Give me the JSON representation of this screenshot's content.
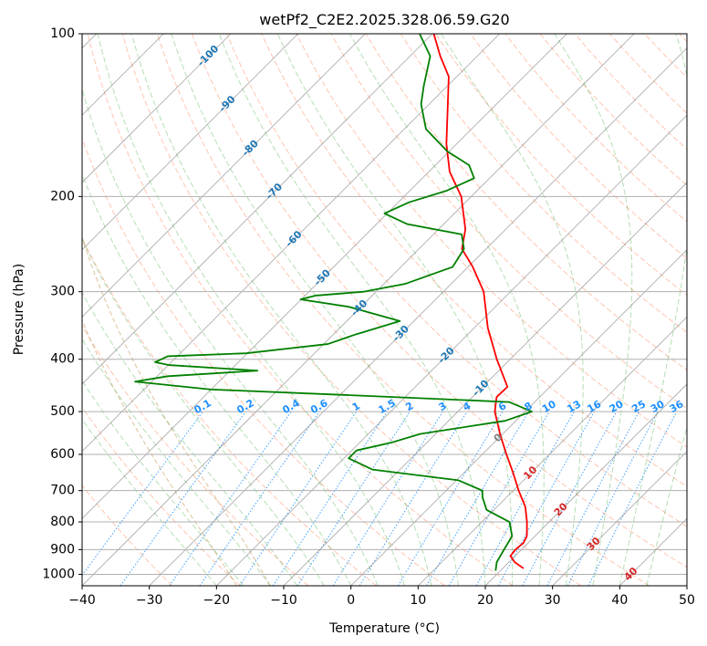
{
  "chart_data": {
    "type": "line",
    "title": "wetPf2_C2E2.2025.328.06.59.G20",
    "xlabel": "Temperature (°C)",
    "ylabel": "Pressure (hPa)",
    "xlim": [
      -40,
      50
    ],
    "ylim": [
      1050,
      100
    ],
    "y_scale": "log",
    "skew_degrees": 45,
    "grid": true,
    "x_ticks": [
      -40,
      -30,
      -20,
      -10,
      0,
      10,
      20,
      30,
      40,
      50
    ],
    "x_tick_labels": [
      "−40",
      "−30",
      "−20",
      "−10",
      "0",
      "10",
      "20",
      "30",
      "40",
      "50"
    ],
    "y_ticks": [
      1000,
      900,
      800,
      700,
      600,
      500,
      400,
      300,
      200,
      100
    ],
    "y_tick_labels": [
      "1000",
      "900",
      "800",
      "700",
      "600",
      "500",
      "400",
      "300",
      "200",
      "100"
    ],
    "series": [
      {
        "kind": "temperature",
        "color": "#ff0000",
        "points": [
          {
            "p": 975,
            "t": 23.1
          },
          {
            "p": 950,
            "t": 20.9
          },
          {
            "p": 925,
            "t": 19.3
          },
          {
            "p": 900,
            "t": 19.1
          },
          {
            "p": 875,
            "t": 19.3
          },
          {
            "p": 850,
            "t": 18.8
          },
          {
            "p": 800,
            "t": 16.7
          },
          {
            "p": 750,
            "t": 14.2
          },
          {
            "p": 700,
            "t": 10.8
          },
          {
            "p": 650,
            "t": 7.4
          },
          {
            "p": 600,
            "t": 3.6
          },
          {
            "p": 550,
            "t": -0.4
          },
          {
            "p": 500,
            "t": -4.5
          },
          {
            "p": 470,
            "t": -6.4
          },
          {
            "p": 450,
            "t": -6.3
          },
          {
            "p": 430,
            "t": -8.5
          },
          {
            "p": 400,
            "t": -12.0
          },
          {
            "p": 350,
            "t": -18.0
          },
          {
            "p": 300,
            "t": -24.0
          },
          {
            "p": 270,
            "t": -29.3
          },
          {
            "p": 250,
            "t": -33.6
          },
          {
            "p": 230,
            "t": -36.0
          },
          {
            "p": 200,
            "t": -41.5
          },
          {
            "p": 180,
            "t": -46.9
          },
          {
            "p": 160,
            "t": -51.5
          },
          {
            "p": 140,
            "t": -56.0
          },
          {
            "p": 120,
            "t": -61.2
          },
          {
            "p": 110,
            "t": -65.5
          },
          {
            "p": 100,
            "t": -69.8
          }
        ]
      },
      {
        "kind": "dewpoint",
        "color": "#008000",
        "points": [
          {
            "p": 985,
            "t": 19.3
          },
          {
            "p": 950,
            "t": 18.2
          },
          {
            "p": 900,
            "t": 17.4
          },
          {
            "p": 850,
            "t": 16.6
          },
          {
            "p": 800,
            "t": 14.1
          },
          {
            "p": 760,
            "t": 8.9
          },
          {
            "p": 720,
            "t": 6.4
          },
          {
            "p": 700,
            "t": 5.4
          },
          {
            "p": 670,
            "t": 0.3
          },
          {
            "p": 640,
            "t": -14.1
          },
          {
            "p": 610,
            "t": -19.3
          },
          {
            "p": 590,
            "t": -19.3
          },
          {
            "p": 570,
            "t": -15.2
          },
          {
            "p": 550,
            "t": -12.3
          },
          {
            "p": 520,
            "t": -1.6
          },
          {
            "p": 500,
            "t": 1.0
          },
          {
            "p": 480,
            "t": -3.8
          },
          {
            "p": 465,
            "t": -30.8
          },
          {
            "p": 455,
            "t": -50.0
          },
          {
            "p": 440,
            "t": -62.5
          },
          {
            "p": 430,
            "t": -58.4
          },
          {
            "p": 420,
            "t": -45.9
          },
          {
            "p": 410,
            "t": -60.0
          },
          {
            "p": 405,
            "t": -62.4
          },
          {
            "p": 395,
            "t": -61.4
          },
          {
            "p": 390,
            "t": -50.2
          },
          {
            "p": 375,
            "t": -39.4
          },
          {
            "p": 360,
            "t": -36.7
          },
          {
            "p": 340,
            "t": -32.1
          },
          {
            "p": 320,
            "t": -41.8
          },
          {
            "p": 310,
            "t": -50.1
          },
          {
            "p": 305,
            "t": -48.4
          },
          {
            "p": 300,
            "t": -41.8
          },
          {
            "p": 290,
            "t": -36.8
          },
          {
            "p": 270,
            "t": -32.3
          },
          {
            "p": 250,
            "t": -33.3
          },
          {
            "p": 235,
            "t": -35.8
          },
          {
            "p": 225,
            "t": -45.4
          },
          {
            "p": 215,
            "t": -50.4
          },
          {
            "p": 205,
            "t": -48.4
          },
          {
            "p": 195,
            "t": -44.5
          },
          {
            "p": 185,
            "t": -42.3
          },
          {
            "p": 175,
            "t": -45.0
          },
          {
            "p": 165,
            "t": -50.3
          },
          {
            "p": 150,
            "t": -56.8
          },
          {
            "p": 135,
            "t": -61.2
          },
          {
            "p": 125,
            "t": -63.5
          },
          {
            "p": 110,
            "t": -67.0
          },
          {
            "p": 100,
            "t": -71.9
          }
        ]
      }
    ],
    "isotherm_labels": {
      "color": "#1f77b4",
      "items": [
        {
          "value": -100,
          "text": "-100"
        },
        {
          "value": -90,
          "text": "-90"
        },
        {
          "value": -80,
          "text": "-80"
        },
        {
          "value": -70,
          "text": "-70"
        },
        {
          "value": -60,
          "text": "-60"
        },
        {
          "value": -50,
          "text": "-50"
        },
        {
          "value": -40,
          "text": "-40"
        },
        {
          "value": -30,
          "text": "-30"
        },
        {
          "value": -20,
          "text": "-20"
        },
        {
          "value": -10,
          "text": "-10"
        }
      ]
    },
    "isotherm_labels_warm": {
      "items": [
        {
          "value": 0,
          "text": "0",
          "color": "#7f7f7f"
        },
        {
          "value": 10,
          "text": "10",
          "color": "#d62728"
        },
        {
          "value": 20,
          "text": "20",
          "color": "#d62728"
        },
        {
          "value": 30,
          "text": "30",
          "color": "#d62728"
        },
        {
          "value": 40,
          "text": "40",
          "color": "#d62728"
        }
      ]
    },
    "mixing_ratio_labels": {
      "color": "#1e90ff",
      "pressure": 500,
      "items": [
        {
          "value": 0.1,
          "text": "0.1"
        },
        {
          "value": 0.2,
          "text": "0.2"
        },
        {
          "value": 0.4,
          "text": "0.4"
        },
        {
          "value": 0.6,
          "text": "0.6"
        },
        {
          "value": 1,
          "text": "1"
        },
        {
          "value": 1.5,
          "text": "1.5"
        },
        {
          "value": 2,
          "text": "2"
        },
        {
          "value": 3,
          "text": "3"
        },
        {
          "value": 4,
          "text": "4"
        },
        {
          "value": 6,
          "text": "6"
        },
        {
          "value": 8,
          "text": "8"
        },
        {
          "value": 10,
          "text": "10"
        },
        {
          "value": 13,
          "text": "13"
        },
        {
          "value": 16,
          "text": "16"
        },
        {
          "value": 20,
          "text": "20"
        },
        {
          "value": 25,
          "text": "25"
        },
        {
          "value": 30,
          "text": "30"
        },
        {
          "value": 36,
          "text": "36"
        }
      ]
    },
    "colors": {
      "isotherm": "#808080",
      "isobar": "#b0b0b0",
      "dry_adiabat": "#ff7f50",
      "moist_adiabat": "#2ca02c",
      "mixing_ratio": "#1e90ff",
      "dendritic": "#c8a062"
    }
  }
}
